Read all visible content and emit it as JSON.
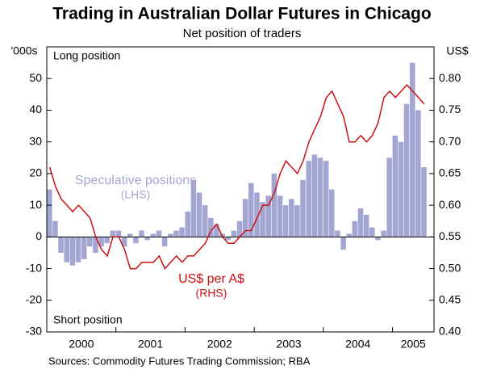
{
  "chart_data": {
    "type": "bar-line",
    "title": "Trading in Australian Dollar Futures in Chicago",
    "subtitle": "Net position of traders",
    "ylabel": "'000s",
    "y2label": "US$",
    "annotations": [
      "Long position",
      "Short position"
    ],
    "axis_notes": [
      "(LHS)",
      "(RHS)"
    ],
    "source": "Sources:  Commodity Futures Trading Commission; RBA",
    "x": [
      2000.042,
      2000.125,
      2000.208,
      2000.292,
      2000.375,
      2000.458,
      2000.542,
      2000.625,
      2000.708,
      2000.792,
      2000.875,
      2000.958,
      2001.042,
      2001.125,
      2001.208,
      2001.292,
      2001.375,
      2001.458,
      2001.542,
      2001.625,
      2001.708,
      2001.792,
      2001.875,
      2001.958,
      2002.042,
      2002.125,
      2002.208,
      2002.292,
      2002.375,
      2002.458,
      2002.542,
      2002.625,
      2002.708,
      2002.792,
      2002.875,
      2002.958,
      2003.042,
      2003.125,
      2003.208,
      2003.292,
      2003.375,
      2003.458,
      2003.542,
      2003.625,
      2003.708,
      2003.792,
      2003.875,
      2003.958,
      2004.042,
      2004.125,
      2004.208,
      2004.292,
      2004.375,
      2004.458,
      2004.542,
      2004.625,
      2004.708,
      2004.792,
      2004.875,
      2004.958,
      2005.042,
      2005.125,
      2005.208,
      2005.292,
      2005.375,
      2005.458
    ],
    "series": [
      {
        "name": "Speculative positions",
        "color": "#a3a6d2",
        "values": [
          15,
          5,
          -5,
          -8,
          -9,
          -8,
          -7,
          -3,
          -5,
          -3,
          -2,
          2,
          2,
          -3,
          1,
          -2,
          2,
          -1,
          1,
          2,
          -3,
          1,
          2,
          3,
          8,
          18,
          14,
          10,
          6,
          4,
          1,
          -1,
          2,
          5,
          12,
          17,
          14,
          11,
          13,
          20,
          13,
          10,
          12,
          10,
          18,
          24,
          26,
          25,
          24,
          15,
          2,
          -4,
          1,
          5,
          9,
          7,
          3,
          -1,
          2,
          25,
          32,
          30,
          42,
          55,
          40,
          22
        ]
      },
      {
        "name": "US$ per A$",
        "color": "#cc1111",
        "axis": "y2",
        "values": [
          0.66,
          0.63,
          0.61,
          0.6,
          0.59,
          0.6,
          0.59,
          0.58,
          0.55,
          0.53,
          0.52,
          0.55,
          0.55,
          0.53,
          0.5,
          0.5,
          0.51,
          0.51,
          0.51,
          0.52,
          0.5,
          0.51,
          0.52,
          0.51,
          0.52,
          0.52,
          0.53,
          0.54,
          0.56,
          0.57,
          0.55,
          0.54,
          0.54,
          0.55,
          0.56,
          0.56,
          0.58,
          0.6,
          0.6,
          0.62,
          0.65,
          0.67,
          0.66,
          0.65,
          0.67,
          0.7,
          0.72,
          0.74,
          0.77,
          0.78,
          0.76,
          0.74,
          0.7,
          0.7,
          0.71,
          0.7,
          0.71,
          0.73,
          0.77,
          0.78,
          0.77,
          0.78,
          0.79,
          0.78,
          0.77,
          0.76
        ]
      }
    ],
    "xlim": [
      2000,
      2005.6
    ],
    "xticks": [
      {
        "value": 2000,
        "label": "2000"
      },
      {
        "value": 2001,
        "label": "2001"
      },
      {
        "value": 2002,
        "label": "2002"
      },
      {
        "value": 2003,
        "label": "2003"
      },
      {
        "value": 2004,
        "label": "2004"
      },
      {
        "value": 2005,
        "label": "2005"
      }
    ],
    "ylim": [
      -30,
      60
    ],
    "yticks": [
      -30,
      -20,
      -10,
      0,
      10,
      20,
      30,
      40,
      50
    ],
    "y2lim": [
      0.4,
      0.85
    ],
    "y2ticks": [
      {
        "value": 0.4,
        "label": "0.40"
      },
      {
        "value": 0.45,
        "label": "0.45"
      },
      {
        "value": 0.5,
        "label": "0.50"
      },
      {
        "value": 0.55,
        "label": "0.55"
      },
      {
        "value": 0.6,
        "label": "0.60"
      },
      {
        "value": 0.65,
        "label": "0.65"
      },
      {
        "value": 0.7,
        "label": "0.70"
      },
      {
        "value": 0.75,
        "label": "0.75"
      },
      {
        "value": 0.8,
        "label": "0.80"
      }
    ],
    "grid": false
  }
}
